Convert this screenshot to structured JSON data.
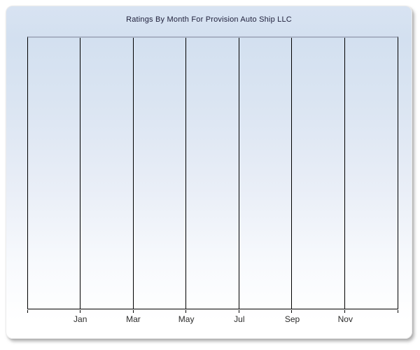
{
  "page": {
    "background_color": "#ffffff"
  },
  "panel": {
    "background_top_color": "#d8e3f2",
    "background_bottom_color": "#ffffff",
    "border_color": "#ececec",
    "shadow_color": "#828282"
  },
  "chart_data": {
    "type": "line",
    "title": "Ratings By Month For Provision Auto Ship LLC",
    "subtitle": "",
    "x_tick_labels": [
      "Jan",
      "Mar",
      "May",
      "Jul",
      "Sep",
      "Nov"
    ],
    "x_intervals": 7,
    "series": [],
    "data_points_rendered": "none (empty plot area)",
    "y_axis_tick_labels": [],
    "grid": "vertical gridlines only, no horizontal gridlines",
    "legend": "none",
    "colors": {
      "title_color": "#1e1e3a",
      "label_color": "#2a2a2a",
      "gridline_color": "#000000",
      "axis_color": "#000000",
      "plot_top_border_color": "#a7b1c3"
    }
  }
}
